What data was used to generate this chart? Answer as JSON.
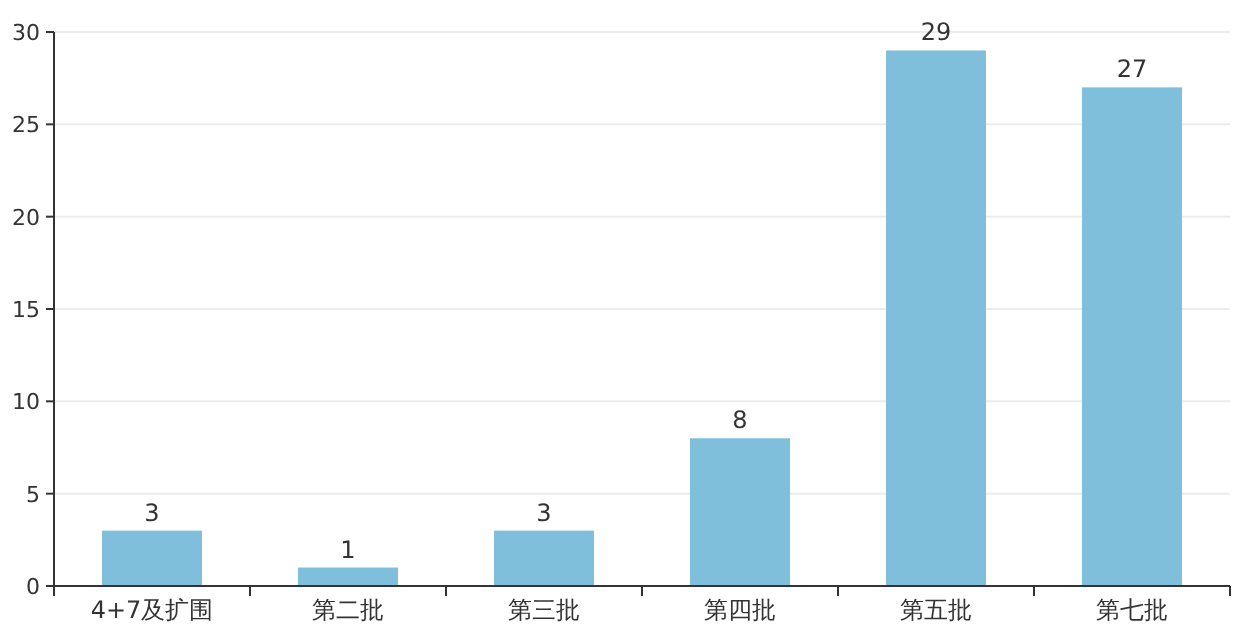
{
  "chart_data": {
    "type": "bar",
    "categories": [
      "4+7及扩围",
      "第二批",
      "第三批",
      "第四批",
      "第五批",
      "第七批"
    ],
    "values": [
      3,
      1,
      3,
      8,
      29,
      27
    ],
    "color": "#7fbfdc",
    "ylim": [
      0,
      30
    ],
    "yticks": [
      0,
      5,
      10,
      15,
      20,
      25,
      30
    ],
    "grid": "y",
    "data_labels": true
  }
}
